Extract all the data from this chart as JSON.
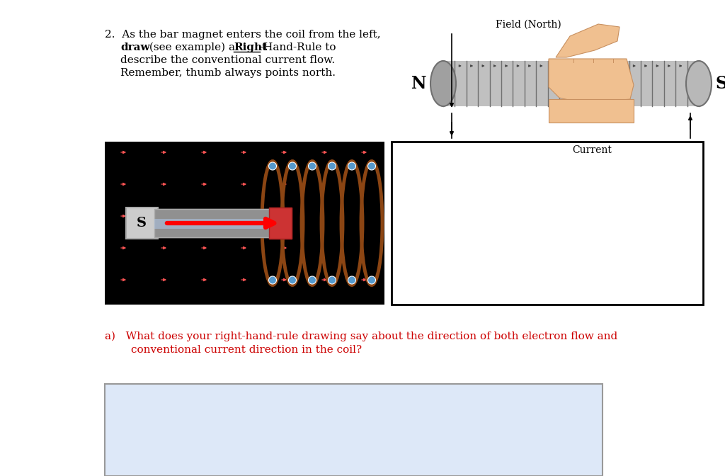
{
  "bg": "#ffffff",
  "serif": "DejaVu Serif",
  "text_fs": 11,
  "q_color": "#cc0000",
  "answer_bg": "#dde8f8",
  "coil_body_color": "#c0c0c0",
  "coil_edge_color": "#707070",
  "hand_skin": "#f0c090",
  "hand_edge": "#c89060",
  "magnet_gray": "#909090",
  "magnet_s_gray": "#c0c0c0",
  "magnet_n_red": "#cc3333",
  "coil2_brown": "#8B4513",
  "dot_blue": "#5599cc",
  "arrow_red": "#ff4444",
  "black_bg": "#000000",
  "para1": "2.  As the bar magnet enters the coil from the left,",
  "para2a": "draw",
  "para2b": " (see example) a ",
  "para2c": "Right",
  "para2d": "-Hand-Rule to",
  "para3": "describe the conventional current flow.",
  "para4": "Remember, thumb always points north.",
  "field_north": "Field (North)",
  "N_lbl": "N",
  "S_lbl": "S",
  "current_lbl": "Current",
  "qa1": "a)   What does your right-hand-rule drawing say about the direction of both electron flow and",
  "qa2": "conventional current direction in the coil?"
}
